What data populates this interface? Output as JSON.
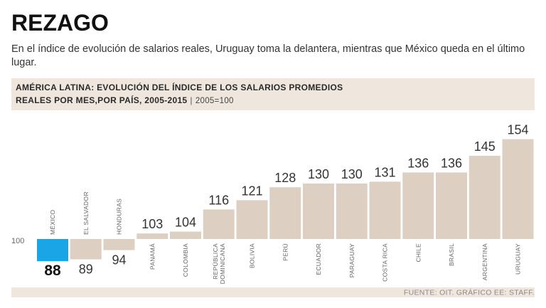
{
  "header": {
    "title": "REZAGO",
    "subtitle": "En el índice de evolución de salarios reales, Uruguay toma la delantera, mientras que México queda en el último lugar."
  },
  "chart_data": {
    "type": "bar",
    "title_line1": "AMÉRICA LATINA: EVOLUCIÓN DEL ÍNDICE DE LOS SALARIOS PROMEDIOS",
    "title_line2": "REALES POR MES,POR PAÍS, 2005-2015",
    "separator": "|",
    "base_note": "2005=100",
    "baseline_label": "100",
    "baseline": 100,
    "categories": [
      "MÉXICO",
      "EL SALVADOR",
      "HONDURAS",
      "PANAMÁ",
      "COLOMBIA",
      "REPÚBLICA DOMINICANA",
      "BOLIVIA",
      "PERÚ",
      "ECUADOR",
      "PARAGUAY",
      "COSTA RICA",
      "CHILE",
      "BRASIL",
      "ARGENTINA",
      "URUGUAY"
    ],
    "values": [
      88,
      89,
      94,
      103,
      104,
      116,
      121,
      128,
      130,
      130,
      131,
      136,
      136,
      145,
      154
    ],
    "ylim": [
      88,
      154
    ],
    "highlight_category": "MÉXICO",
    "source": "FUENTE: OIT.  GRÁFICO EE: STAFF."
  },
  "colors": {
    "bar": "#ddd0c3",
    "highlight": "#1aa5e6",
    "panel": "#efe7de",
    "strip": "#efe7de",
    "label": "#666666",
    "value": "#333333"
  }
}
